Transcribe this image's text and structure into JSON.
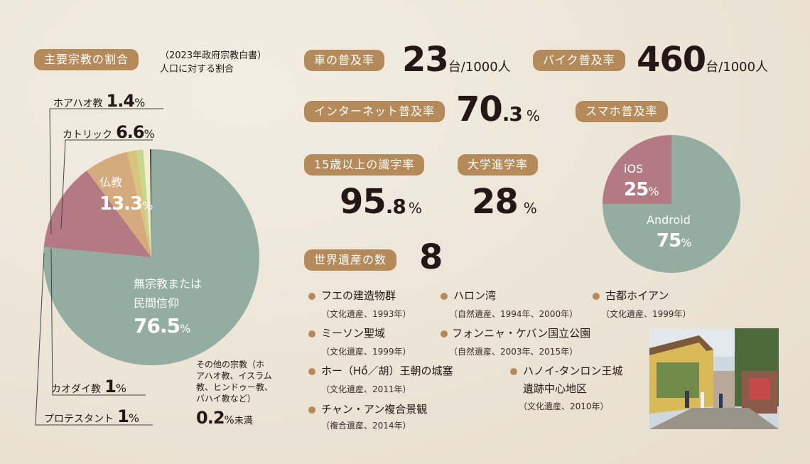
{
  "colors": {
    "pill": "#b58a5a",
    "none_religion": "#93ada2",
    "buddhism": "#b47a84",
    "catholic": "#d4a97c",
    "hoahao": "#d8c47c",
    "caodai": "#c6d88e",
    "protestant": "#f2edcf",
    "other": "#333333",
    "ios": "#b47a84",
    "android": "#93ada2"
  },
  "religion": {
    "header": "主要宗教の割合",
    "note_line1": "（2023年政府宗教白書）",
    "note_line2": "人口に対する割合",
    "hoahao_label": "ホアハオ教",
    "hoahao_value": "1.4",
    "hoahao_unit": "%",
    "catholic_label": "カトリック",
    "catholic_value": "6.6",
    "catholic_unit": "%",
    "buddhism_label": "仏教",
    "buddhism_value": "13.3",
    "buddhism_unit": "%",
    "none_label1": "無宗教または",
    "none_label2": "民間信仰",
    "none_value": "76.5",
    "none_unit": "%",
    "other_l1": "その他の宗教（ホ",
    "other_l2": "アハオ教、イスラム",
    "other_l3": "教、ヒンドゥー教、",
    "other_l4": "バハイ教など）",
    "other_value": "0.2",
    "other_unit": "%",
    "other_suffix": "未満",
    "caodai_label": "カオダイ教",
    "caodai_value": "1",
    "caodai_unit": "%",
    "protestant_label": "プロテスタント",
    "protestant_value": "1",
    "protestant_unit": "%"
  },
  "stats": {
    "car_label": "車の普及率",
    "car_value": "23",
    "car_unit": "台/1000人",
    "bike_label": "バイク普及率",
    "bike_value": "460",
    "bike_unit": "台/1000人",
    "internet_label": "インターネット普及率",
    "internet_int": "70",
    "internet_dec": ".3",
    "internet_unit": "%",
    "literacy_label": "15歳以上の識字率",
    "literacy_int": "95",
    "literacy_dec": ".8",
    "literacy_unit": "%",
    "college_label": "大学進学率",
    "college_value": "28",
    "college_unit": "%",
    "smartphone_label": "スマホ普及率",
    "heritage_label": "世界遺産の数",
    "heritage_value": "8"
  },
  "smartphone": {
    "ios_label": "iOS",
    "ios_value": "25",
    "ios_unit": "%",
    "android_label": "Android",
    "android_value": "75",
    "android_unit": "%"
  },
  "heritage": {
    "items": [
      {
        "name": "フエの建造物群",
        "sub": "（文化遺産、1993年）"
      },
      {
        "name": "ハロン湾",
        "sub": "（自然遺産、1994年、2000年）"
      },
      {
        "name": "古都ホイアン",
        "sub": "（文化遺産、1999年）"
      },
      {
        "name": "ミーソン聖域",
        "sub": "（文化遺産、1999年）"
      },
      {
        "name": "フォンニャ・ケバン国立公園",
        "sub": "（自然遺産、2003年、2015年）"
      },
      {
        "name": "ホー（Hồ／胡）王朝の城塞",
        "sub": "（文化遺産、2011年）"
      },
      {
        "name": "ハノイ-タンロン王城",
        "name2": "遺跡中心地区",
        "sub": "（文化遺産、2010年）"
      },
      {
        "name": "チャン・アン複合景観",
        "sub": "（複合遺産、2014年）"
      }
    ]
  },
  "chart_data": [
    {
      "type": "pie",
      "categories": [
        "無宗教または民間信仰",
        "仏教",
        "カトリック",
        "ホアハオ教",
        "カオダイ教",
        "プロテスタント",
        "その他の宗教"
      ],
      "values": [
        76.5,
        13.3,
        6.6,
        1.4,
        1,
        1,
        0.2
      ],
      "start_angle_deg": 0,
      "direction": "counterclockwise-from-top"
    },
    {
      "type": "pie",
      "categories": [
        "iOS",
        "Android"
      ],
      "values": [
        25,
        75
      ]
    }
  ]
}
